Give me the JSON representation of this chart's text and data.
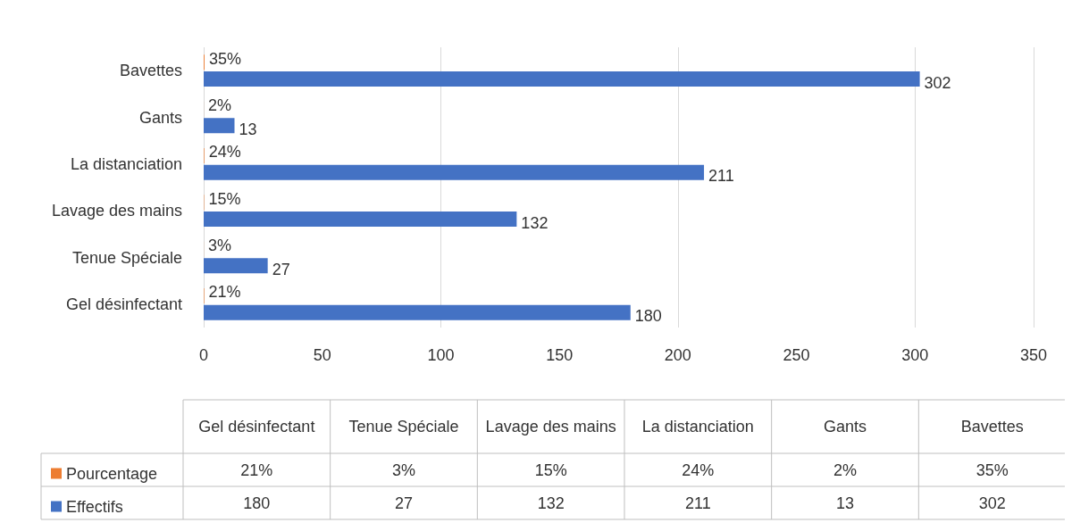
{
  "chart_data": {
    "type": "bar",
    "orientation": "horizontal",
    "categories": [
      "Bavettes",
      "Gants",
      "La distanciation",
      "Lavage des mains",
      "Tenue Spéciale",
      "Gel désinfectant"
    ],
    "series": [
      {
        "name": "Pourcentage",
        "color": "#ed7d31",
        "values": [
          0.35,
          0.02,
          0.24,
          0.15,
          0.03,
          0.21
        ],
        "value_labels": [
          "35%",
          "2%",
          "24%",
          "15%",
          "3%",
          "21%"
        ]
      },
      {
        "name": "Effectifs",
        "color": "#4472c4",
        "values": [
          302,
          13,
          211,
          132,
          27,
          180
        ],
        "value_labels": [
          "302",
          "13",
          "211",
          "132",
          "27",
          "180"
        ]
      }
    ],
    "xlim": [
      0,
      350
    ],
    "xticks": [
      0,
      50,
      100,
      150,
      200,
      250,
      300,
      350
    ],
    "grid": "x",
    "legend": "bottom"
  }
}
